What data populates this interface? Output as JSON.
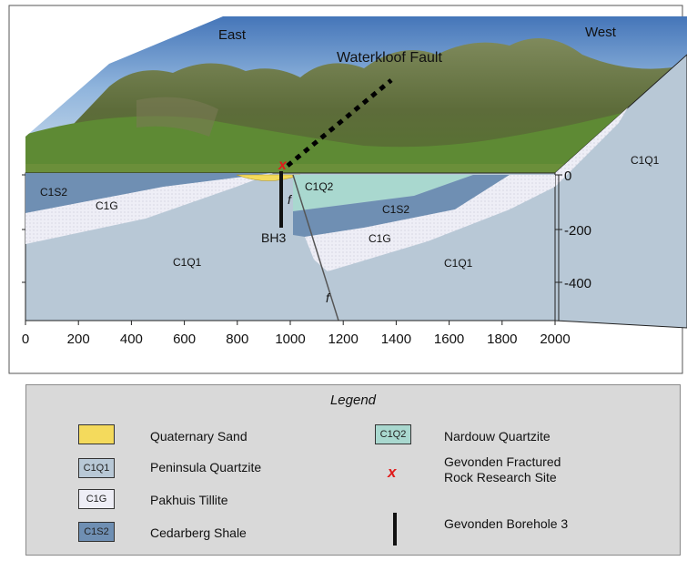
{
  "diagram": {
    "directions": {
      "east": "East",
      "west": "West"
    },
    "fault_label": "Waterkloof Fault",
    "borehole_label": "BH3",
    "fault_marks": [
      "f",
      "f"
    ],
    "site_mark": "x",
    "units_in_section": {
      "c1s2_left": "C1S2",
      "c1g_left": "C1G",
      "c1q1_left": "C1Q1",
      "c1q2": "C1Q2",
      "c1s2_right": "C1S2",
      "c1g_right": "C1G",
      "c1q1_right": "C1Q1",
      "c1q1_side": "C1Q1"
    },
    "depth_axis": {
      "ticks": [
        "0",
        "-200",
        "-400"
      ]
    },
    "distance_axis": {
      "ticks": [
        "0",
        "200",
        "400",
        "600",
        "800",
        "1000",
        "1200",
        "1400",
        "1600",
        "1800",
        "2000"
      ]
    },
    "colors": {
      "sand": "#f4da5c",
      "peninsula_quartzite": "#b8c8d6",
      "pakhuis_tillite": "#eeeef6",
      "cedarberg_shale": "#6f8fb3",
      "nardouw_quartzite": "#a9d8cf",
      "site_marker": "#e01b1b"
    }
  },
  "legend": {
    "title": "Legend",
    "items": [
      {
        "swatch": "",
        "label": "Quaternary Sand"
      },
      {
        "swatch": "C1Q1",
        "label": "Peninsula Quartzite"
      },
      {
        "swatch": "C1G",
        "label": "Pakhuis Tillite"
      },
      {
        "swatch": "C1S2",
        "label": "Cedarberg Shale"
      },
      {
        "swatch": "C1Q2",
        "label": "Nardouw Quartzite"
      },
      {
        "swatch": "x",
        "label_line1": "Gevonden Fractured",
        "label_line2": "Rock Research Site"
      },
      {
        "swatch": "",
        "label": "Gevonden Borehole 3"
      }
    ]
  }
}
